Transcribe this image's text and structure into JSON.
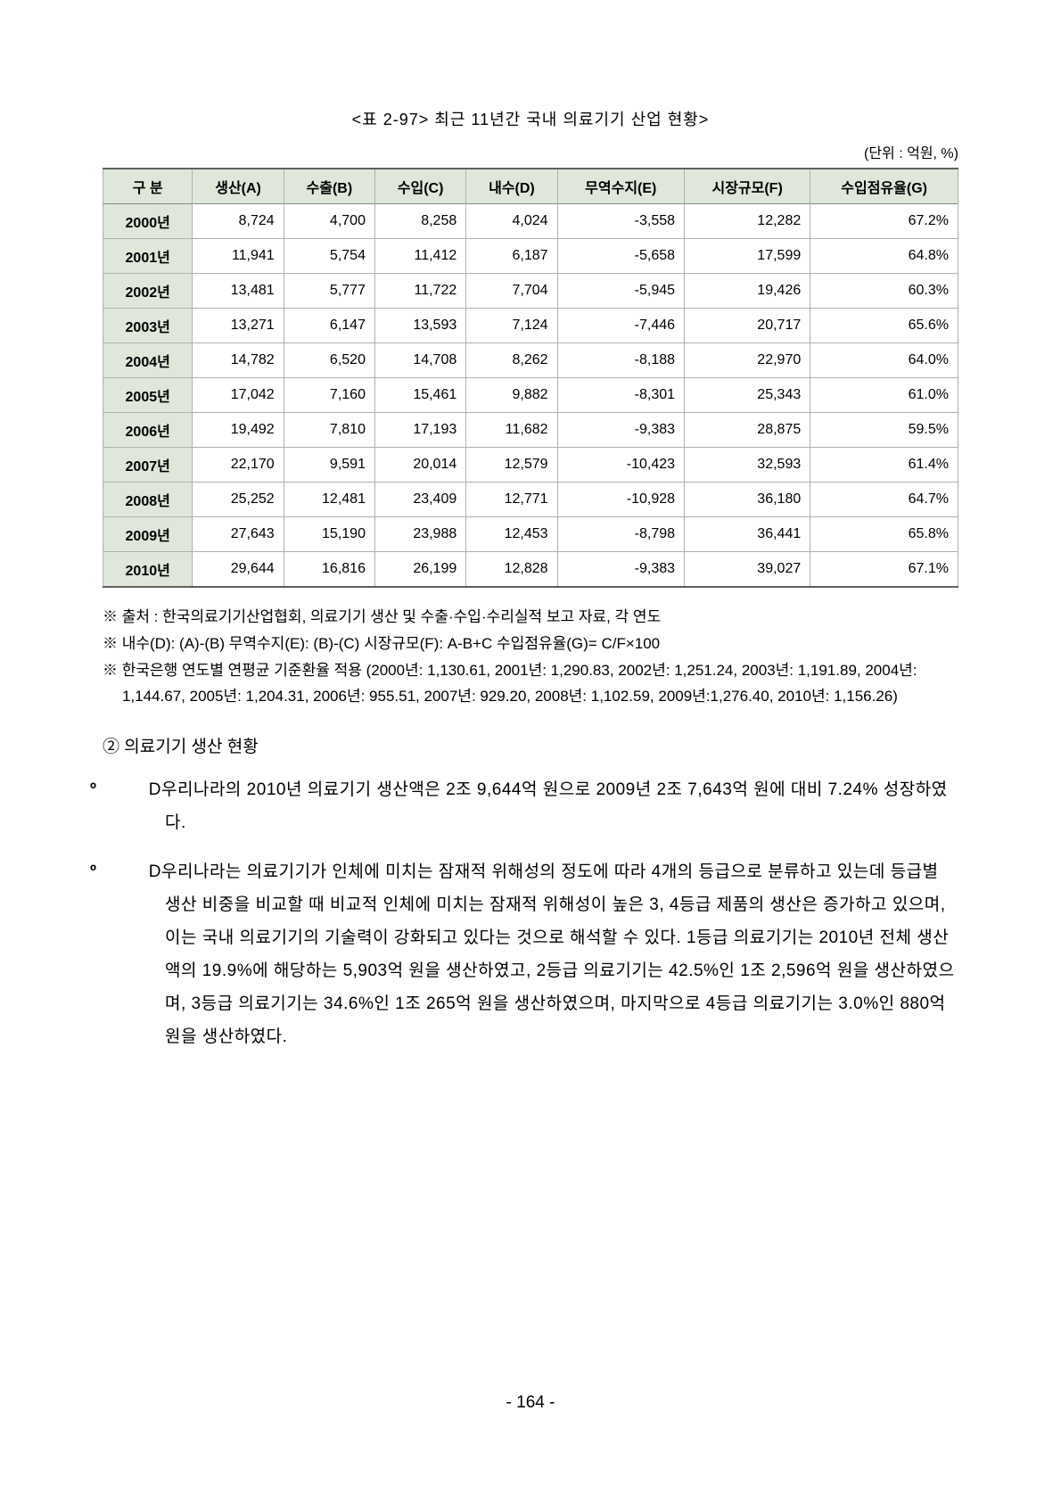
{
  "table": {
    "title": "<표 2-97> 최근 11년간 국내 의료기기 산업 현황>",
    "unit": "(단위 : 억원, %)",
    "columns": [
      "구 분",
      "생산(A)",
      "수출(B)",
      "수입(C)",
      "내수(D)",
      "무역수지(E)",
      "시장규모(F)",
      "수입점유율(G)"
    ],
    "rows": [
      [
        "2000년",
        "8,724",
        "4,700",
        "8,258",
        "4,024",
        "-3,558",
        "12,282",
        "67.2%"
      ],
      [
        "2001년",
        "11,941",
        "5,754",
        "11,412",
        "6,187",
        "-5,658",
        "17,599",
        "64.8%"
      ],
      [
        "2002년",
        "13,481",
        "5,777",
        "11,722",
        "7,704",
        "-5,945",
        "19,426",
        "60.3%"
      ],
      [
        "2003년",
        "13,271",
        "6,147",
        "13,593",
        "7,124",
        "-7,446",
        "20,717",
        "65.6%"
      ],
      [
        "2004년",
        "14,782",
        "6,520",
        "14,708",
        "8,262",
        "-8,188",
        "22,970",
        "64.0%"
      ],
      [
        "2005년",
        "17,042",
        "7,160",
        "15,461",
        "9,882",
        "-8,301",
        "25,343",
        "61.0%"
      ],
      [
        "2006년",
        "19,492",
        "7,810",
        "17,193",
        "11,682",
        "-9,383",
        "28,875",
        "59.5%"
      ],
      [
        "2007년",
        "22,170",
        "9,591",
        "20,014",
        "12,579",
        "-10,423",
        "32,593",
        "61.4%"
      ],
      [
        "2008년",
        "25,252",
        "12,481",
        "23,409",
        "12,771",
        "-10,928",
        "36,180",
        "64.7%"
      ],
      [
        "2009년",
        "27,643",
        "15,190",
        "23,988",
        "12,453",
        "-8,798",
        "36,441",
        "65.8%"
      ],
      [
        "2010년",
        "29,644",
        "16,816",
        "26,199",
        "12,828",
        "-9,383",
        "39,027",
        "67.1%"
      ]
    ],
    "header_bg": "#dfe7db",
    "row_label_bg": "#dfe7db",
    "border_color": "#b0b0b0",
    "outer_border_color": "#606060"
  },
  "notes": {
    "line1": "※  출처 : 한국의료기기산업협회, 의료기기 생산 및 수출·수입·수리실적 보고 자료, 각 연도",
    "line2": "※  내수(D): (A)-(B) 무역수지(E): (B)-(C) 시장규모(F): A-B+C 수입점유율(G)= C/F×100",
    "line3": "※  한국은행 연도별 연평균 기준환율 적용 (2000년: 1,130.61, 2001년: 1,290.83, 2002년: 1,251.24, 2003년: 1,191.89, 2004년: 1,144.67, 2005년: 1,204.31, 2006년: 955.51, 2007년: 929.20, 2008년: 1,102.59, 2009년:1,276.40, 2010년: 1,156.26)"
  },
  "section": {
    "heading": "② 의료기기 생산 현황",
    "bullets": [
      "D우리나라의 2010년 의료기기 생산액은 2조 9,644억 원으로 2009년 2조 7,643억 원에 대비 7.24% 성장하였다.",
      "D우리나라는 의료기기가 인체에 미치는 잠재적 위해성의 정도에 따라 4개의 등급으로 분류하고 있는데 등급별 생산 비중을 비교할 때 비교적 인체에 미치는 잠재적 위해성이 높은 3, 4등급 제품의 생산은 증가하고 있으며, 이는 국내 의료기기의 기술력이 강화되고 있다는 것으로 해석할 수 있다. 1등급 의료기기는 2010년 전체 생산액의 19.9%에 해당하는 5,903억 원을 생산하였고, 2등급 의료기기는 42.5%인 1조 2,596억 원을 생산하였으며, 3등급 의료기기는 34.6%인 1조 265억 원을 생산하였으며, 마지막으로 4등급 의료기기는 3.0%인 880억 원을 생산하였다."
    ],
    "bullet_marker": "º"
  },
  "page_number": "- 164 -"
}
